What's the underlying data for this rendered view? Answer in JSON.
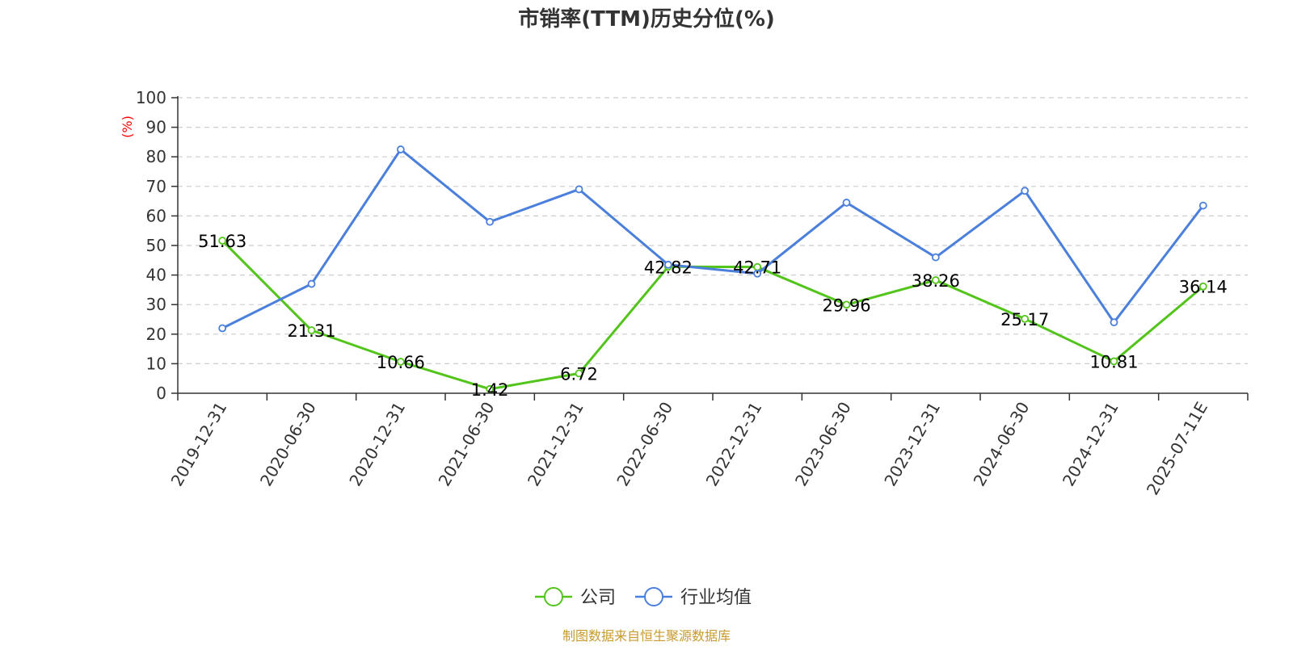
{
  "chart_data": {
    "type": "line",
    "title": "市销率(TTM)历史分位(%)",
    "ylabel": "(%)",
    "xlabel": "",
    "ylim": [
      0,
      100
    ],
    "yticks": [
      0,
      10,
      20,
      30,
      40,
      50,
      60,
      70,
      80,
      90,
      100
    ],
    "categories": [
      "2019-12-31",
      "2020-06-30",
      "2020-12-31",
      "2021-06-30",
      "2021-12-31",
      "2022-06-30",
      "2022-12-31",
      "2023-06-30",
      "2023-12-31",
      "2024-06-30",
      "2024-12-31",
      "2025-07-11E"
    ],
    "grid": true,
    "legend_position": "bottom-center",
    "series": [
      {
        "name": "公司",
        "color": "#52c41a",
        "values": [
          51.63,
          21.31,
          10.66,
          1.42,
          6.72,
          42.82,
          42.71,
          29.96,
          38.26,
          25.17,
          10.81,
          36.14
        ],
        "labels": [
          "51.63",
          "21.31",
          "10.66",
          "1.42",
          "6.72",
          "42.82",
          "42.71",
          "29.96",
          "38.26",
          "25.17",
          "10.81",
          "36.14"
        ]
      },
      {
        "name": "行业均值",
        "color": "#4a7fdc",
        "values": [
          22,
          37,
          82.5,
          58,
          69,
          43.5,
          40.5,
          64.5,
          46,
          68.5,
          24,
          63.5
        ]
      }
    ]
  },
  "source": {
    "text": "制图数据来自恒生聚源数据库",
    "color": "#c89a2e"
  },
  "ylabel_color": "#ff0000"
}
